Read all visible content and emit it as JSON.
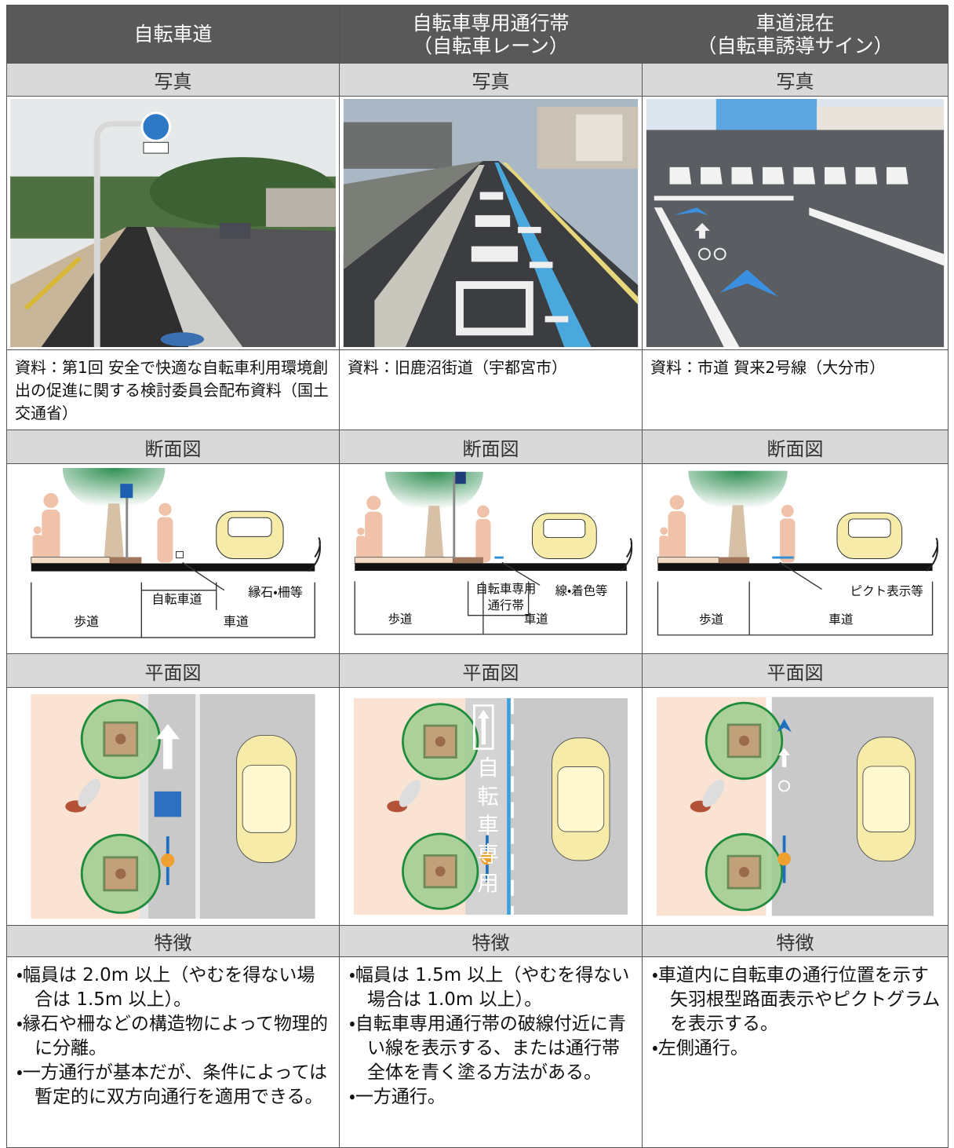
{
  "columns": [
    {
      "title": [
        "自転車道"
      ],
      "photo_label": "写真",
      "photo_caption": "資料：第1回 安全で快適な自転車利用環境創出の促進に関する検討委員会配布資料（国土交通省）",
      "section_label": "断面図",
      "section_texts": [
        "自転車道",
        "縁石・柵等",
        "歩道",
        "車道"
      ],
      "plan_label": "平面図",
      "features_label": "特徴",
      "features": [
        "・幅員は 2.0m 以上（やむを得ない場合は 1.5m 以上）。",
        "・縁石や柵などの構造物によって物理的に分離。",
        "・一方通行が基本だが、条件によっては暫定的に双方向通行を適用できる。"
      ]
    },
    {
      "title": [
        "自転車専用通行帯",
        "（自転車レーン）"
      ],
      "photo_label": "写真",
      "photo_caption": "資料：旧鹿沼街道（宇都宮市）",
      "section_label": "断面図",
      "section_texts": [
        "自転車専用",
        "通行帯",
        "線・着色等",
        "歩道",
        "車道"
      ],
      "plan_label": "平面図",
      "plan_marking": "自転車専用",
      "features_label": "特徴",
      "features": [
        "・幅員は 1.5m 以上（やむを得ない場合は 1.0m 以上）。",
        "・自転車専用通行帯の破線付近に青い線を表示する、または通行帯全体を青く塗る方法がある。",
        "・一方通行。"
      ]
    },
    {
      "title": [
        "車道混在",
        "（自転車誘導サイン）"
      ],
      "photo_label": "写真",
      "photo_caption": "資料：市道 賀来2号線（大分市）",
      "section_label": "断面図",
      "section_texts": [
        "ピクト表示等",
        "歩道",
        "車道"
      ],
      "plan_label": "平面図",
      "features_label": "特徴",
      "features": [
        "・車道内に自転車の通行位置を示す矢羽根型路面表示やピクトグラムを表示する。",
        "・左側通行。"
      ]
    }
  ]
}
